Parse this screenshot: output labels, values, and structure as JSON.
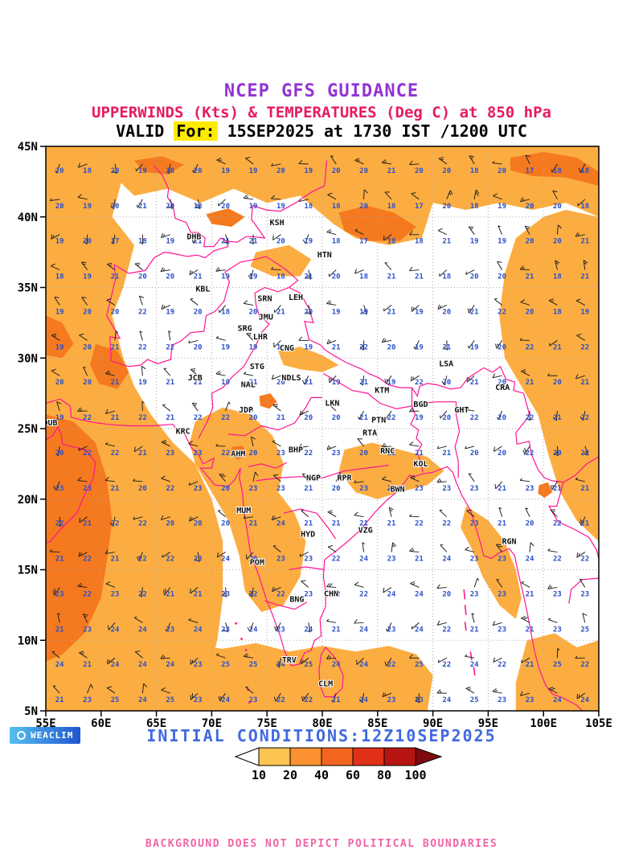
{
  "header": {
    "title": "NCEP GFS GUIDANCE",
    "subtitle": "UPPERWINDS (Kts) & TEMPERATURES (Deg C) at 850 hPa",
    "valid_label": "VALID ",
    "valid_highlight": "For:",
    "valid_value": " 15SEP2025 at 1730 IST /1200 UTC"
  },
  "map": {
    "lat_ticks": [
      {
        "label": "45N",
        "value": 45
      },
      {
        "label": "40N",
        "value": 40
      },
      {
        "label": "35N",
        "value": 35
      },
      {
        "label": "30N",
        "value": 30
      },
      {
        "label": "25N",
        "value": 25
      },
      {
        "label": "20N",
        "value": 20
      },
      {
        "label": "15N",
        "value": 15
      },
      {
        "label": "10N",
        "value": 10
      },
      {
        "label": "5N",
        "value": 5
      }
    ],
    "lon_ticks": [
      {
        "label": "55E",
        "value": 55
      },
      {
        "label": "60E",
        "value": 60
      },
      {
        "label": "65E",
        "value": 65
      },
      {
        "label": "70E",
        "value": 70
      },
      {
        "label": "75E",
        "value": 75
      },
      {
        "label": "80E",
        "value": 80
      },
      {
        "label": "85E",
        "value": 85
      },
      {
        "label": "90E",
        "value": 90
      },
      {
        "label": "95E",
        "value": 95
      },
      {
        "label": "100E",
        "value": 100
      },
      {
        "label": "105E",
        "value": 105
      }
    ],
    "stations": [
      {
        "id": "KSH",
        "lon": 75.9,
        "lat": 39.6
      },
      {
        "id": "DHB",
        "lon": 68.4,
        "lat": 38.6
      },
      {
        "id": "HTN",
        "lon": 80.2,
        "lat": 37.3
      },
      {
        "id": "KBL",
        "lon": 69.2,
        "lat": 34.9
      },
      {
        "id": "SRN",
        "lon": 74.8,
        "lat": 34.2
      },
      {
        "id": "LEH",
        "lon": 77.6,
        "lat": 34.3
      },
      {
        "id": "JMU",
        "lon": 74.9,
        "lat": 32.9
      },
      {
        "id": "SRG",
        "lon": 73.0,
        "lat": 32.1
      },
      {
        "id": "LHR",
        "lon": 74.4,
        "lat": 31.5
      },
      {
        "id": "CNG",
        "lon": 76.8,
        "lat": 30.7
      },
      {
        "id": "STG",
        "lon": 74.1,
        "lat": 29.4
      },
      {
        "id": "JCB",
        "lon": 68.5,
        "lat": 28.6
      },
      {
        "id": "NAL",
        "lon": 73.3,
        "lat": 28.1
      },
      {
        "id": "NDLS",
        "lon": 77.2,
        "lat": 28.6
      },
      {
        "id": "LSA",
        "lon": 91.2,
        "lat": 29.6
      },
      {
        "id": "KTM",
        "lon": 85.4,
        "lat": 27.7
      },
      {
        "id": "CRA",
        "lon": 96.3,
        "lat": 27.9
      },
      {
        "id": "JDP",
        "lon": 73.1,
        "lat": 26.3
      },
      {
        "id": "LKN",
        "lon": 80.9,
        "lat": 26.8
      },
      {
        "id": "BGD",
        "lon": 88.9,
        "lat": 26.7
      },
      {
        "id": "GHT",
        "lon": 92.6,
        "lat": 26.3
      },
      {
        "id": "PTN",
        "lon": 85.1,
        "lat": 25.6
      },
      {
        "id": "DUB",
        "lon": 55.4,
        "lat": 25.4
      },
      {
        "id": "KRC",
        "lon": 67.4,
        "lat": 24.8
      },
      {
        "id": "RTA",
        "lon": 84.3,
        "lat": 24.7
      },
      {
        "id": "AHM",
        "lon": 72.4,
        "lat": 23.2
      },
      {
        "id": "BHP",
        "lon": 77.6,
        "lat": 23.5
      },
      {
        "id": "RNC",
        "lon": 85.9,
        "lat": 23.4
      },
      {
        "id": "KOL",
        "lon": 88.9,
        "lat": 22.5
      },
      {
        "id": "NGP",
        "lon": 79.2,
        "lat": 21.5
      },
      {
        "id": "RPR",
        "lon": 82.0,
        "lat": 21.5
      },
      {
        "id": "BWN",
        "lon": 86.8,
        "lat": 20.7
      },
      {
        "id": "MUM",
        "lon": 72.9,
        "lat": 19.2
      },
      {
        "id": "HYD",
        "lon": 78.7,
        "lat": 17.5
      },
      {
        "id": "VZG",
        "lon": 83.9,
        "lat": 17.8
      },
      {
        "id": "RGN",
        "lon": 96.9,
        "lat": 17.0
      },
      {
        "id": "POM",
        "lon": 74.1,
        "lat": 15.5
      },
      {
        "id": "CHN",
        "lon": 80.8,
        "lat": 13.3
      },
      {
        "id": "BNG",
        "lon": 77.7,
        "lat": 12.9
      },
      {
        "id": "TRV",
        "lon": 77.0,
        "lat": 8.6
      },
      {
        "id": "CLM",
        "lon": 80.3,
        "lat": 6.9
      }
    ],
    "wind_grid_deg": 2.5,
    "temp_range_c": {
      "min": 12,
      "max": 26
    }
  },
  "colors": {
    "title": "#9233D4",
    "subtitle": "#E61C5D",
    "valid_text": "#000000",
    "valid_highlight_bg": "#FFEB00",
    "boundary": "#FF1493",
    "grid": "#AAAAAA",
    "temp_text": "#2B50C8",
    "station_text": "#111111",
    "barb": "#222222",
    "fill_light": "#FCAD41",
    "fill_deep": "#F5791F",
    "initial_conditions": "#4169E1",
    "disclaimer": "#F263A8",
    "axis_text": "#000000",
    "logo_bg": "#1E55CE",
    "logo_bg2": "#55C0F0"
  },
  "footer": {
    "logo_text": "WEACLIM",
    "initial_conditions": "INITIAL CONDITIONS:12Z10SEP2025",
    "colorbar": {
      "labels": [
        "10",
        "20",
        "40",
        "60",
        "80",
        "100"
      ],
      "segment_colors": [
        "#FDC44F",
        "#FB9130",
        "#F4661F",
        "#E03018",
        "#B81412"
      ],
      "tail_color": "#FFFFFF",
      "head_color": "#7E0A10",
      "units": "Kts"
    },
    "disclaimer": "BACKGROUND DOES NOT DEPICT POLITICAL BOUNDARIES"
  },
  "chart_data": {
    "type": "heatmap",
    "title": "NCEP GFS GUIDANCE",
    "subtitle": "UPPERWINDS (Kts) & TEMPERATURES (Deg C) at 850 hPa",
    "valid": "15SEP2025 at 1730 IST /1200 UTC",
    "initial_conditions": "12Z10SEP2025",
    "shading": "wind speed (Kts)",
    "shade_levels": [
      10,
      20,
      40,
      60,
      80,
      100
    ],
    "x_range": [
      55,
      105
    ],
    "y_range": [
      5,
      45
    ]
  }
}
